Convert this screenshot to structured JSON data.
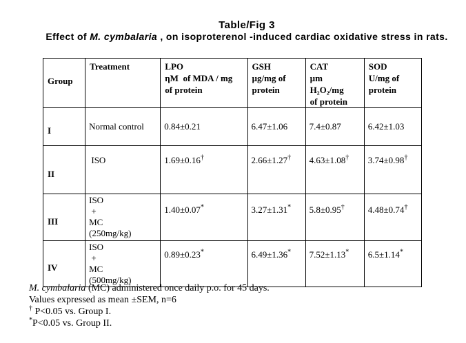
{
  "title": {
    "line1": "Table/Fig 3",
    "line2_prefix": "Effect of ",
    "line2_italic": "M. cymbalaria",
    "line2_suffix": " , on isoproterenol -induced cardiac oxidative stress in rats."
  },
  "table": {
    "headers": [
      {
        "key": "group",
        "text": "Group"
      },
      {
        "key": "treatment",
        "text": "Treatment"
      },
      {
        "key": "lpo",
        "text": "LPO\nηM  of MDA / mg\nof protein"
      },
      {
        "key": "gsh",
        "text": "GSH\nµg/mg of\nprotein"
      },
      {
        "key": "cat",
        "text": "CAT\nµm\nH₂O₂/mg\nof protein"
      },
      {
        "key": "sod",
        "text": "SOD\nU/mg of\nprotein"
      }
    ],
    "rows": [
      {
        "group": "I",
        "treatment": "Normal control",
        "values": [
          {
            "v": "0.84±0.21",
            "sup": ""
          },
          {
            "v": "6.47±1.06",
            "sup": ""
          },
          {
            "v": "7.4±0.87",
            "sup": ""
          },
          {
            "v": "6.42±1.03",
            "sup": ""
          }
        ]
      },
      {
        "group": "II",
        "treatment": " ISO",
        "values": [
          {
            "v": "1.69±0.16",
            "sup": "†"
          },
          {
            "v": "2.66±1.27",
            "sup": "†"
          },
          {
            "v": "4.63±1.08",
            "sup": "†"
          },
          {
            "v": "3.74±0.98",
            "sup": "†"
          }
        ]
      },
      {
        "group": "III",
        "treatment": "ISO\n +\nMC\n(250mg/kg)",
        "values": [
          {
            "v": "1.40±0.07",
            "sup": "*"
          },
          {
            "v": "3.27±1.31",
            "sup": "*"
          },
          {
            "v": "5.8±0.95",
            "sup": "†"
          },
          {
            "v": "4.48±0.74",
            "sup": "†"
          }
        ]
      },
      {
        "group": "IV",
        "treatment": "ISO\n +\nMC\n(500mg/kg)",
        "values": [
          {
            "v": "0.89±0.23",
            "sup": "*"
          },
          {
            "v": "6.49±1.36",
            "sup": "*"
          },
          {
            "v": "7.52±1.13",
            "sup": "*"
          },
          {
            "v": "6.5±1.14",
            "sup": "*"
          }
        ]
      }
    ]
  },
  "footnotes": [
    {
      "italic": "M. cymbalaria",
      "sup": "",
      "text": " (MC) administered once daily p.o. for 45 days."
    },
    {
      "italic": "",
      "sup": "",
      "text": "Values expressed as mean ±SEM, n=6"
    },
    {
      "italic": "",
      "sup": "†",
      "text": " P<0.05 vs. Group I."
    },
    {
      "italic": "",
      "sup": "*",
      "text": "P<0.05 vs. Group II."
    }
  ]
}
